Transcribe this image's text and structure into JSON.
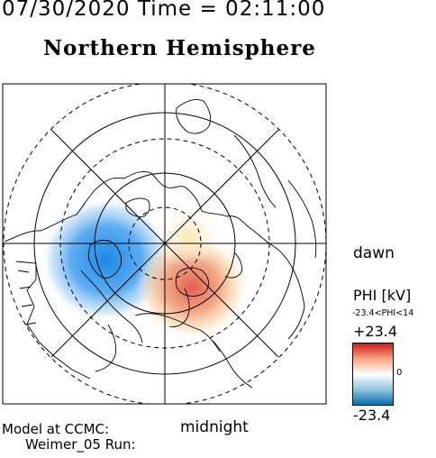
{
  "header": {
    "date_time": "07/30/2020 Time = 02:11:00",
    "hemisphere": "Northern Hemisphere"
  },
  "map_labels": {
    "dawn": "dawn",
    "midnight": "midnight"
  },
  "legend": {
    "quantity": "PHI [kV]",
    "range_text": "-23.4<PHI<14",
    "max_value": "+23.4",
    "zero_label": "0",
    "min_value": "-23.4",
    "colors": {
      "positive": "#d7191c",
      "neutral": "#ffffff",
      "negative": "#0571b0"
    }
  },
  "footer": {
    "model_label": "Model at CCMC:",
    "run_label": "Weimer_05 Run:"
  }
}
